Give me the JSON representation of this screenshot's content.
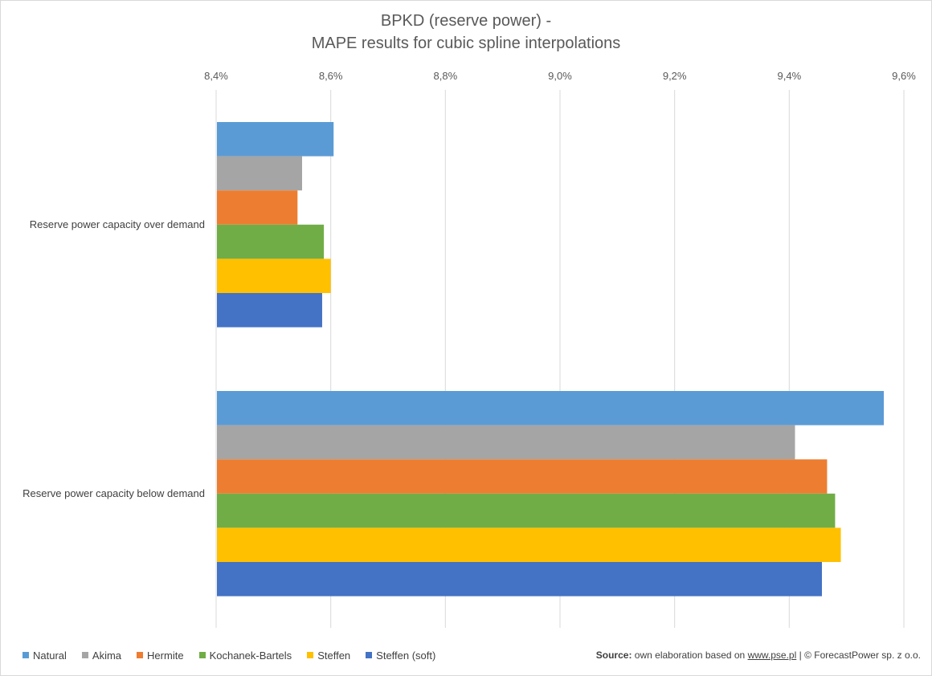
{
  "title_lines": [
    "BPKD (reserve power) -",
    "MAPE results for cubic spline interpolations"
  ],
  "source": {
    "label": "Source:",
    "text": "own elaboration based on",
    "link": "www.pse.pl",
    "separator": "|",
    "copyright": "© ForecastPower sp. z o.o."
  },
  "chart_data": {
    "type": "bar",
    "orientation": "horizontal",
    "title": "BPKD (reserve power) - MAPE results for cubic spline interpolations",
    "categories": [
      "Reserve power capacity over demand",
      "Reserve power capacity below demand"
    ],
    "x_ticks": [
      "8,4%",
      "8,6%",
      "8,8%",
      "9,0%",
      "9,2%",
      "9,4%",
      "9,6%"
    ],
    "xlim": [
      8.4,
      9.6
    ],
    "unit": "%",
    "grid": true,
    "axis_position": "top",
    "legend_position": "bottom-left",
    "series": [
      {
        "name": "Natural",
        "color": "#5b9bd5",
        "values": [
          8.605,
          9.565
        ]
      },
      {
        "name": "Akima",
        "color": "#a5a5a5",
        "values": [
          8.55,
          9.41
        ]
      },
      {
        "name": "Hermite",
        "color": "#ed7d31",
        "values": [
          8.542,
          9.466
        ]
      },
      {
        "name": "Kochanek-Bartels",
        "color": "#70ad47",
        "values": [
          8.588,
          9.48
        ]
      },
      {
        "name": "Steffen",
        "color": "#ffc000",
        "values": [
          8.6,
          9.49
        ]
      },
      {
        "name": "Steffen (soft)",
        "color": "#4472c4",
        "values": [
          8.585,
          9.457
        ]
      }
    ]
  }
}
